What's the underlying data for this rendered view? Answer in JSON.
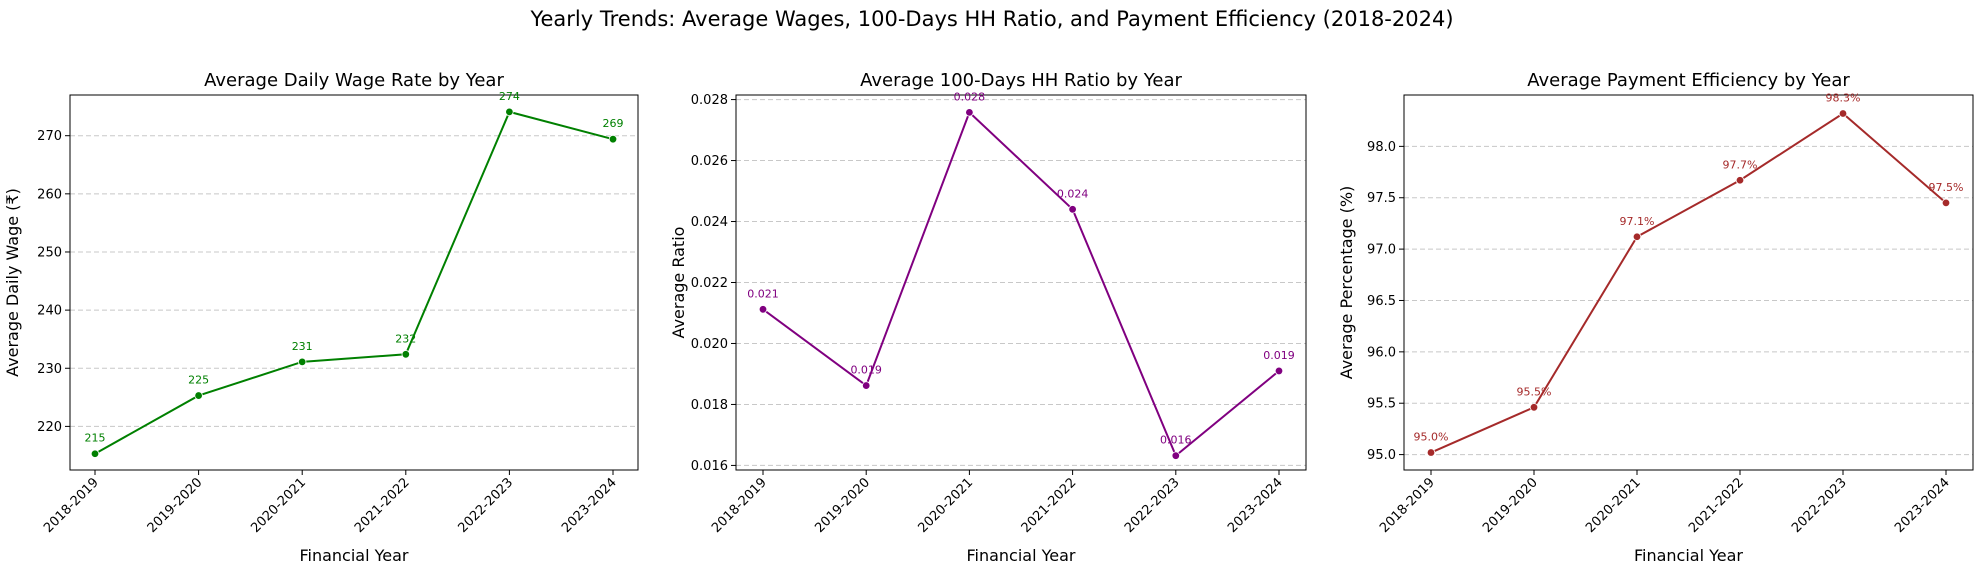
{
  "suptitle": "Yearly Trends: Average Wages, 100-Days HH Ratio, and Payment Efficiency (2018-2024)",
  "chart_data": [
    {
      "type": "line",
      "title": "Average Daily Wage Rate by Year",
      "xlabel": "Financial Year",
      "ylabel": "Average Daily Wage (₹)",
      "categories": [
        "2018-2019",
        "2019-2020",
        "2020-2021",
        "2021-2022",
        "2022-2023",
        "2023-2024"
      ],
      "values": [
        215.3,
        225.3,
        231.1,
        232.4,
        274.1,
        269.4
      ],
      "data_labels": [
        "215",
        "225",
        "231",
        "232",
        "274",
        "269"
      ],
      "ylim": [
        212.5,
        277.0
      ],
      "yticks": [
        220,
        230,
        240,
        250,
        260,
        270
      ],
      "ytick_labels": [
        "220",
        "230",
        "240",
        "250",
        "260",
        "270"
      ],
      "color": "#008000",
      "grid": true
    },
    {
      "type": "line",
      "title": "Average 100-Days HH Ratio by Year",
      "xlabel": "Financial Year",
      "ylabel": "Average Ratio",
      "categories": [
        "2018-2019",
        "2019-2020",
        "2020-2021",
        "2021-2022",
        "2022-2023",
        "2023-2024"
      ],
      "values": [
        0.02112,
        0.01862,
        0.02758,
        0.0244,
        0.01632,
        0.0191
      ],
      "data_labels": [
        "0.021",
        "0.019",
        "0.028",
        "0.024",
        "0.016",
        "0.019"
      ],
      "ylim": [
        0.01585,
        0.02815
      ],
      "yticks": [
        0.016,
        0.018,
        0.02,
        0.022,
        0.024,
        0.026,
        0.028
      ],
      "ytick_labels": [
        "0.016",
        "0.018",
        "0.020",
        "0.022",
        "0.024",
        "0.026",
        "0.028"
      ],
      "color": "#800080",
      "grid": true
    },
    {
      "type": "line",
      "title": "Average Payment Efficiency by Year",
      "xlabel": "Financial Year",
      "ylabel": "Average Percentage (%)",
      "categories": [
        "2018-2019",
        "2019-2020",
        "2020-2021",
        "2021-2022",
        "2022-2023",
        "2023-2024"
      ],
      "values": [
        95.02,
        95.46,
        97.12,
        97.67,
        98.32,
        97.45
      ],
      "data_labels": [
        "95.0%",
        "95.5%",
        "97.1%",
        "97.7%",
        "98.3%",
        "97.5%"
      ],
      "ylim": [
        94.85,
        98.5
      ],
      "yticks": [
        95.0,
        95.5,
        96.0,
        96.5,
        97.0,
        97.5,
        98.0
      ],
      "ytick_labels": [
        "95.0",
        "95.5",
        "96.0",
        "96.5",
        "97.0",
        "97.5",
        "98.0"
      ],
      "color": "#a52a2a",
      "grid": true
    }
  ]
}
